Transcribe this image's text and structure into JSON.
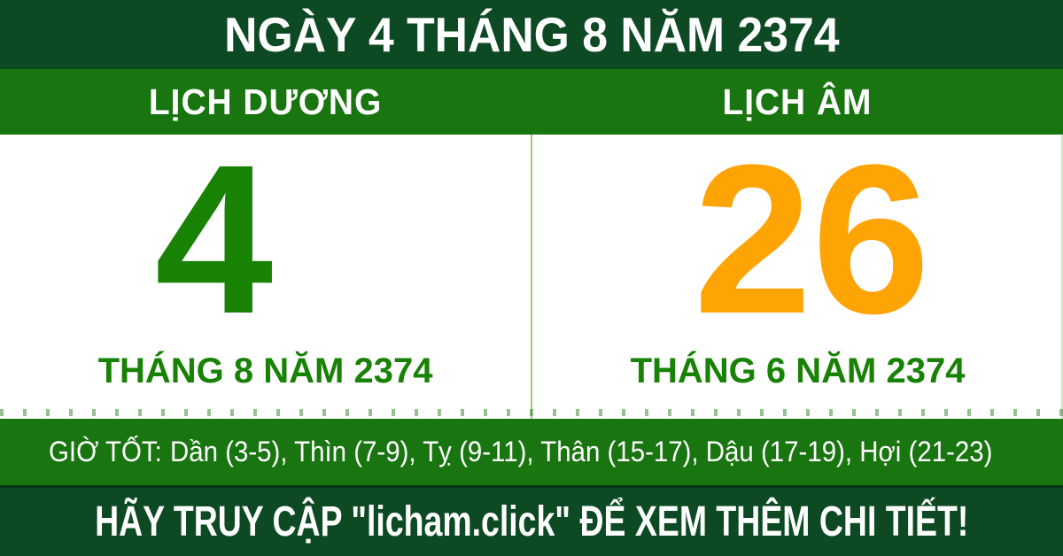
{
  "colors": {
    "dark_green": "#0d4a23",
    "green": "#187510",
    "solar_green": "#178204",
    "lunar_orange": "#ffa405",
    "divider_green": "#9bcf70"
  },
  "header": {
    "title": "NGÀY 4 THÁNG 8 NĂM 2374"
  },
  "columns": {
    "solar_label": "LỊCH DƯƠNG",
    "lunar_label": "LỊCH ÂM"
  },
  "solar": {
    "day": "4",
    "month_year": "THÁNG 8 NĂM 2374"
  },
  "lunar": {
    "day": "26",
    "month_year": "THÁNG 6 NĂM 2374"
  },
  "good_hours": {
    "label": "GIỜ TỐT:",
    "value": "Dần (3-5), Thìn (7-9), Tỵ (9-11), Thân (15-17), Dậu (17-19), Hợi (21-23)"
  },
  "footer": {
    "cta": "HÃY TRUY CẬP \"licham.click\" ĐỂ XEM THÊM CHI TIẾT!"
  }
}
